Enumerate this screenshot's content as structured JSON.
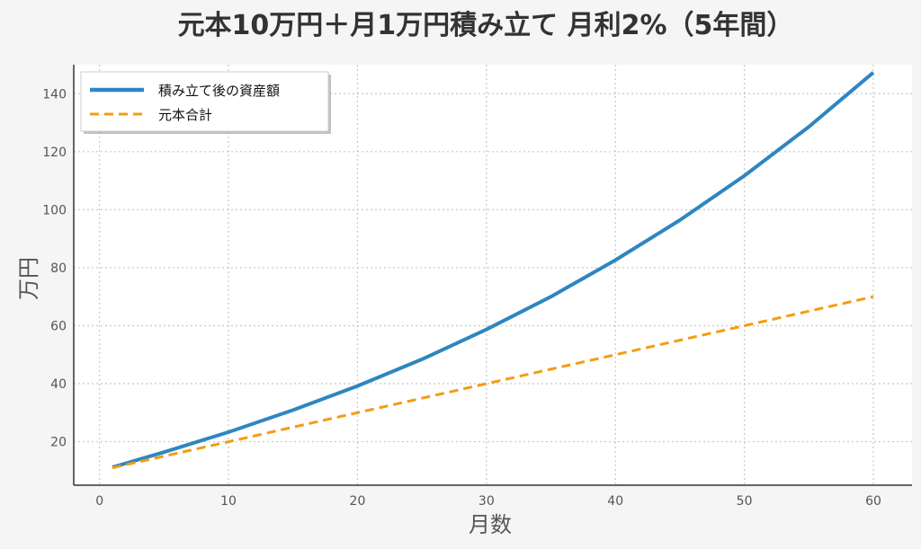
{
  "chart_data": {
    "type": "line",
    "title": "元本10万円＋月1万円積み立て 月利2%（5年間）",
    "xlabel": "月数",
    "ylabel": "万円",
    "xlim": [
      -2,
      63
    ],
    "ylim": [
      5,
      150
    ],
    "xticks": [
      0,
      10,
      20,
      30,
      40,
      50,
      60
    ],
    "yticks": [
      20,
      40,
      60,
      80,
      100,
      120,
      140
    ],
    "grid": true,
    "legend_position": "top-left",
    "x": [
      1,
      5,
      10,
      15,
      20,
      25,
      30,
      35,
      40,
      45,
      50,
      55,
      60
    ],
    "series": [
      {
        "name": "積み立て後の資産額",
        "color": "#2e86c1",
        "style": "solid",
        "values": [
          11.2,
          16.4,
          23.3,
          30.9,
          39.2,
          48.4,
          58.7,
          70.0,
          82.6,
          96.4,
          111.7,
          128.6,
          147.3
        ]
      },
      {
        "name": "元本合計",
        "color": "#f39c12",
        "style": "dashed",
        "values": [
          11,
          15,
          20,
          25,
          30,
          35,
          40,
          45,
          50,
          55,
          60,
          65,
          70
        ]
      }
    ]
  }
}
